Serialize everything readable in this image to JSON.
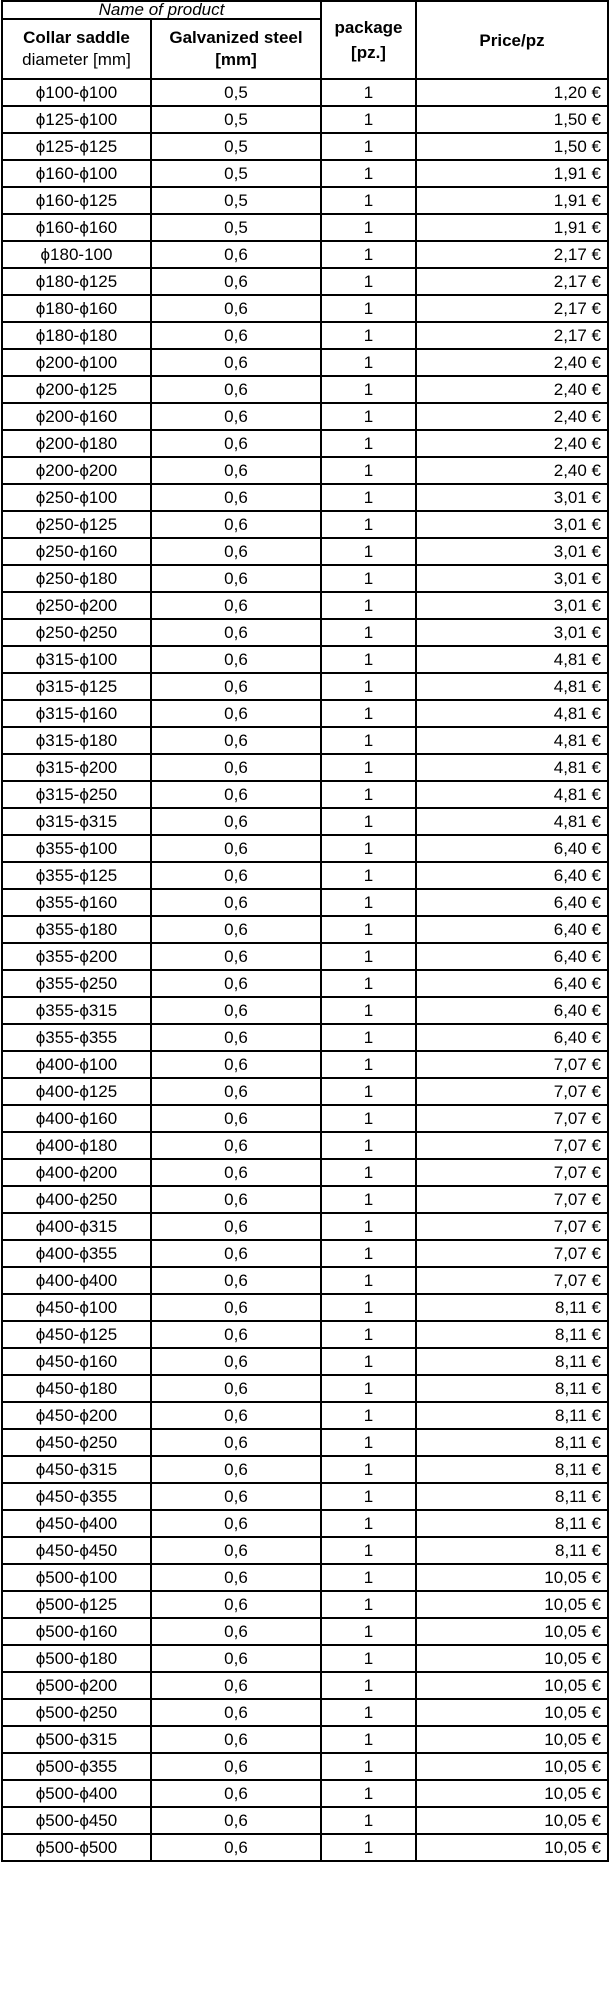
{
  "header": {
    "group": "Name of product",
    "col1_line1": "Collar saddle",
    "col1_line2": "diameter [mm]",
    "col2_line1": "Galvanized steel",
    "col2_line2": "[mm]",
    "col3_line1": "package",
    "col3_line2": "[pz.]",
    "col4": "Price/pz"
  },
  "rows": [
    [
      "ϕ100-ϕ100",
      "0,5",
      "1",
      "1,20 €"
    ],
    [
      "ϕ125-ϕ100",
      "0,5",
      "1",
      "1,50 €"
    ],
    [
      "ϕ125-ϕ125",
      "0,5",
      "1",
      "1,50 €"
    ],
    [
      "ϕ160-ϕ100",
      "0,5",
      "1",
      "1,91 €"
    ],
    [
      "ϕ160-ϕ125",
      "0,5",
      "1",
      "1,91 €"
    ],
    [
      "ϕ160-ϕ160",
      "0,5",
      "1",
      "1,91 €"
    ],
    [
      "ϕ180-100",
      "0,6",
      "1",
      "2,17 €"
    ],
    [
      "ϕ180-ϕ125",
      "0,6",
      "1",
      "2,17 €"
    ],
    [
      "ϕ180-ϕ160",
      "0,6",
      "1",
      "2,17 €"
    ],
    [
      "ϕ180-ϕ180",
      "0,6",
      "1",
      "2,17 €"
    ],
    [
      "ϕ200-ϕ100",
      "0,6",
      "1",
      "2,40 €"
    ],
    [
      "ϕ200-ϕ125",
      "0,6",
      "1",
      "2,40 €"
    ],
    [
      "ϕ200-ϕ160",
      "0,6",
      "1",
      "2,40 €"
    ],
    [
      "ϕ200-ϕ180",
      "0,6",
      "1",
      "2,40 €"
    ],
    [
      "ϕ200-ϕ200",
      "0,6",
      "1",
      "2,40 €"
    ],
    [
      "ϕ250-ϕ100",
      "0,6",
      "1",
      "3,01 €"
    ],
    [
      "ϕ250-ϕ125",
      "0,6",
      "1",
      "3,01 €"
    ],
    [
      "ϕ250-ϕ160",
      "0,6",
      "1",
      "3,01 €"
    ],
    [
      "ϕ250-ϕ180",
      "0,6",
      "1",
      "3,01 €"
    ],
    [
      "ϕ250-ϕ200",
      "0,6",
      "1",
      "3,01 €"
    ],
    [
      "ϕ250-ϕ250",
      "0,6",
      "1",
      "3,01 €"
    ],
    [
      "ϕ315-ϕ100",
      "0,6",
      "1",
      "4,81 €"
    ],
    [
      "ϕ315-ϕ125",
      "0,6",
      "1",
      "4,81 €"
    ],
    [
      "ϕ315-ϕ160",
      "0,6",
      "1",
      "4,81 €"
    ],
    [
      "ϕ315-ϕ180",
      "0,6",
      "1",
      "4,81 €"
    ],
    [
      "ϕ315-ϕ200",
      "0,6",
      "1",
      "4,81 €"
    ],
    [
      "ϕ315-ϕ250",
      "0,6",
      "1",
      "4,81 €"
    ],
    [
      "ϕ315-ϕ315",
      "0,6",
      "1",
      "4,81 €"
    ],
    [
      "ϕ355-ϕ100",
      "0,6",
      "1",
      "6,40 €"
    ],
    [
      "ϕ355-ϕ125",
      "0,6",
      "1",
      "6,40 €"
    ],
    [
      "ϕ355-ϕ160",
      "0,6",
      "1",
      "6,40 €"
    ],
    [
      "ϕ355-ϕ180",
      "0,6",
      "1",
      "6,40 €"
    ],
    [
      "ϕ355-ϕ200",
      "0,6",
      "1",
      "6,40 €"
    ],
    [
      "ϕ355-ϕ250",
      "0,6",
      "1",
      "6,40 €"
    ],
    [
      "ϕ355-ϕ315",
      "0,6",
      "1",
      "6,40 €"
    ],
    [
      "ϕ355-ϕ355",
      "0,6",
      "1",
      "6,40 €"
    ],
    [
      "ϕ400-ϕ100",
      "0,6",
      "1",
      "7,07 €"
    ],
    [
      "ϕ400-ϕ125",
      "0,6",
      "1",
      "7,07 €"
    ],
    [
      "ϕ400-ϕ160",
      "0,6",
      "1",
      "7,07 €"
    ],
    [
      "ϕ400-ϕ180",
      "0,6",
      "1",
      "7,07 €"
    ],
    [
      "ϕ400-ϕ200",
      "0,6",
      "1",
      "7,07 €"
    ],
    [
      "ϕ400-ϕ250",
      "0,6",
      "1",
      "7,07 €"
    ],
    [
      "ϕ400-ϕ315",
      "0,6",
      "1",
      "7,07 €"
    ],
    [
      "ϕ400-ϕ355",
      "0,6",
      "1",
      "7,07 €"
    ],
    [
      "ϕ400-ϕ400",
      "0,6",
      "1",
      "7,07 €"
    ],
    [
      "ϕ450-ϕ100",
      "0,6",
      "1",
      "8,11 €"
    ],
    [
      "ϕ450-ϕ125",
      "0,6",
      "1",
      "8,11 €"
    ],
    [
      "ϕ450-ϕ160",
      "0,6",
      "1",
      "8,11 €"
    ],
    [
      "ϕ450-ϕ180",
      "0,6",
      "1",
      "8,11 €"
    ],
    [
      "ϕ450-ϕ200",
      "0,6",
      "1",
      "8,11 €"
    ],
    [
      "ϕ450-ϕ250",
      "0,6",
      "1",
      "8,11 €"
    ],
    [
      "ϕ450-ϕ315",
      "0,6",
      "1",
      "8,11 €"
    ],
    [
      "ϕ450-ϕ355",
      "0,6",
      "1",
      "8,11 €"
    ],
    [
      "ϕ450-ϕ400",
      "0,6",
      "1",
      "8,11 €"
    ],
    [
      "ϕ450-ϕ450",
      "0,6",
      "1",
      "8,11 €"
    ],
    [
      "ϕ500-ϕ100",
      "0,6",
      "1",
      "10,05 €"
    ],
    [
      "ϕ500-ϕ125",
      "0,6",
      "1",
      "10,05 €"
    ],
    [
      "ϕ500-ϕ160",
      "0,6",
      "1",
      "10,05 €"
    ],
    [
      "ϕ500-ϕ180",
      "0,6",
      "1",
      "10,05 €"
    ],
    [
      "ϕ500-ϕ200",
      "0,6",
      "1",
      "10,05 €"
    ],
    [
      "ϕ500-ϕ250",
      "0,6",
      "1",
      "10,05 €"
    ],
    [
      "ϕ500-ϕ315",
      "0,6",
      "1",
      "10,05 €"
    ],
    [
      "ϕ500-ϕ355",
      "0,6",
      "1",
      "10,05 €"
    ],
    [
      "ϕ500-ϕ400",
      "0,6",
      "1",
      "10,05 €"
    ],
    [
      "ϕ500-ϕ450",
      "0,6",
      "1",
      "10,05 €"
    ],
    [
      "ϕ500-ϕ500",
      "0,6",
      "1",
      "10,05 €"
    ]
  ]
}
